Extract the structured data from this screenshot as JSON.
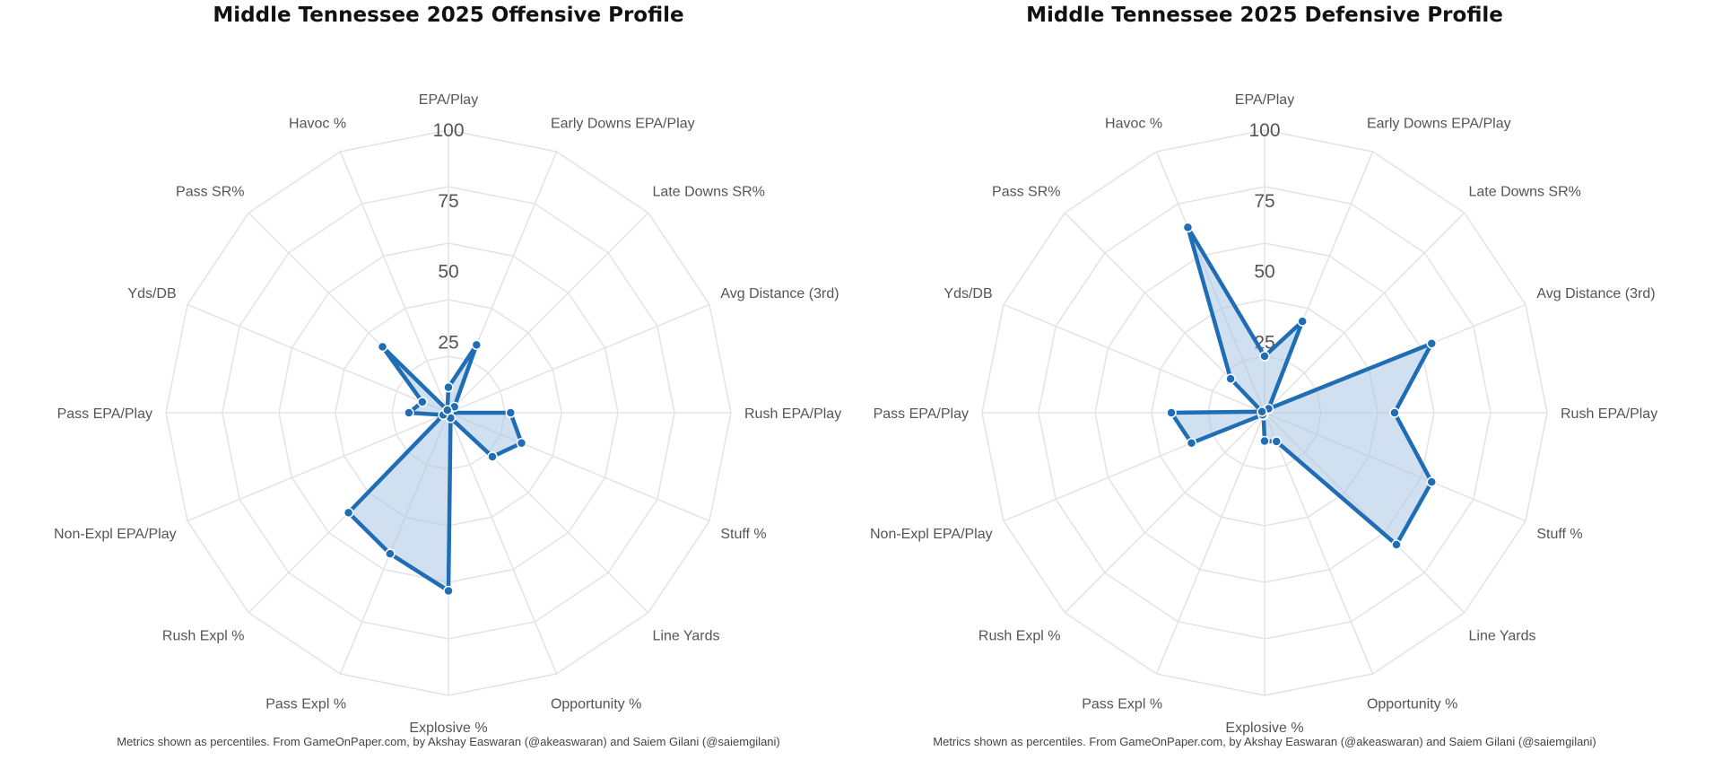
{
  "chart_data": [
    {
      "type": "radar",
      "title": "Middle Tennessee 2025 Offensive Profile",
      "caption": "Metrics shown as percentiles. From GameOnPaper.com, by Akshay Easwaran (@akeaswaran) and Saiem Gilani (@saiemgilani)",
      "categories": [
        "EPA/Play",
        "Early Downs EPA/Play",
        "Late Downs SR%",
        "Avg Distance (3rd)",
        "Rush EPA/Play",
        "Stuff %",
        "Line Yards",
        "Opportunity %",
        "Explosive %",
        "Pass Expl %",
        "Rush Expl %",
        "Non-Expl EPA/Play",
        "Pass EPA/Play",
        "Yds/DB",
        "Pass SR%",
        "Havoc %"
      ],
      "rticks": [
        25,
        50,
        75,
        100
      ],
      "rlim": [
        0,
        100
      ],
      "series": [
        {
          "values": [
            9,
            26,
            3,
            0,
            22,
            28,
            22,
            2,
            63,
            54,
            50,
            2,
            14,
            10,
            33,
            1
          ]
        }
      ],
      "color": "#1f6db5",
      "fill_color": "#a9c6e3"
    },
    {
      "type": "radar",
      "title": "Middle Tennessee 2025 Defensive Profile",
      "caption": "Metrics shown as percentiles. From GameOnPaper.com, by Akshay Easwaran (@akeaswaran) and Saiem Gilani (@saiemgilani)",
      "categories": [
        "EPA/Play",
        "Early Downs EPA/Play",
        "Late Downs SR%",
        "Avg Distance (3rd)",
        "Rush EPA/Play",
        "Stuff %",
        "Line Yards",
        "Opportunity %",
        "Explosive %",
        "Pass Expl %",
        "Rush Expl %",
        "Non-Expl EPA/Play",
        "Pass EPA/Play",
        "Yds/DB",
        "Pass SR%",
        "Havoc %"
      ],
      "rticks": [
        25,
        50,
        75,
        100
      ],
      "rlim": [
        0,
        100
      ],
      "series": [
        {
          "values": [
            20,
            35,
            2,
            64,
            46,
            64,
            66,
            11,
            10,
            1,
            1,
            28,
            33,
            1,
            17,
            71
          ]
        }
      ],
      "color": "#1f6db5",
      "fill_color": "#a9c6e3"
    }
  ]
}
